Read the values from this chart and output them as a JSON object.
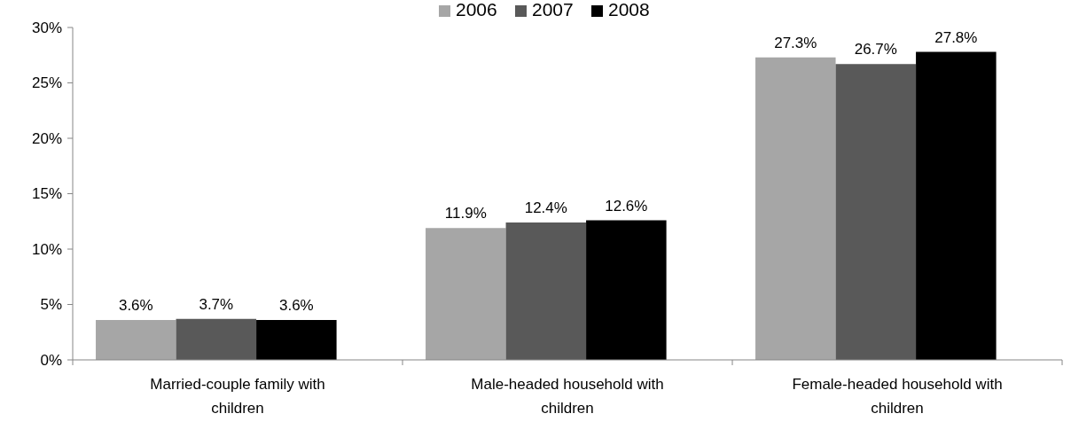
{
  "chart_data": {
    "type": "bar",
    "categories": [
      "Married-couple family with children",
      "Male-headed household with children",
      "Female-headed household with children"
    ],
    "series": [
      {
        "name": "2006",
        "color": "#a6a6a6",
        "values": [
          3.6,
          11.9,
          27.3
        ],
        "value_labels": [
          "3.6%",
          "11.9%",
          "27.3%"
        ]
      },
      {
        "name": "2007",
        "color": "#595959",
        "values": [
          3.7,
          12.4,
          26.7
        ],
        "value_labels": [
          "3.7%",
          "12.4%",
          "26.7%"
        ]
      },
      {
        "name": "2008",
        "color": "#000000",
        "values": [
          3.6,
          12.6,
          27.8
        ],
        "value_labels": [
          "3.6%",
          "12.6%",
          "27.8%"
        ]
      }
    ],
    "ylim": [
      0,
      30
    ],
    "yticks": [
      {
        "value": 0,
        "label": "0%"
      },
      {
        "value": 5,
        "label": "5%"
      },
      {
        "value": 10,
        "label": "10%"
      },
      {
        "value": 15,
        "label": "15%"
      },
      {
        "value": 20,
        "label": "20%"
      },
      {
        "value": 25,
        "label": "25%"
      },
      {
        "value": 30,
        "label": "30%"
      }
    ],
    "grid": false,
    "legend": "top"
  }
}
